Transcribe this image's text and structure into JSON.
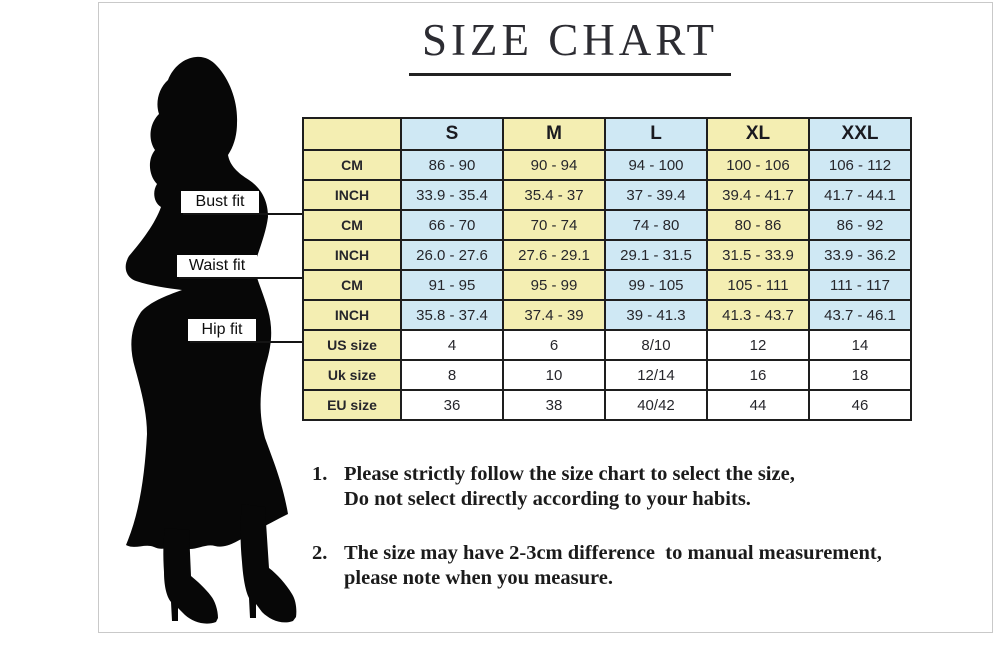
{
  "title": "SIZE CHART",
  "figure_labels": [
    "Bust fit",
    "Waist fit",
    "Hip fit"
  ],
  "chart_data": {
    "type": "table",
    "title": "SIZE CHART",
    "columns": [
      "",
      "S",
      "M",
      "L",
      "XL",
      "XXL"
    ],
    "rows": [
      {
        "group": "Bust fit",
        "label": "CM",
        "values": [
          "86 - 90",
          "90 - 94",
          "94 - 100",
          "100 - 106",
          "106 - 112"
        ]
      },
      {
        "group": "Bust fit",
        "label": "INCH",
        "values": [
          "33.9 - 35.4",
          "35.4 - 37",
          "37 - 39.4",
          "39.4 - 41.7",
          "41.7 - 44.1"
        ]
      },
      {
        "group": "Waist fit",
        "label": "CM",
        "values": [
          "66 - 70",
          "70 - 74",
          "74 - 80",
          "80 - 86",
          "86 - 92"
        ]
      },
      {
        "group": "Waist fit",
        "label": "INCH",
        "values": [
          "26.0 - 27.6",
          "27.6 - 29.1",
          "29.1 - 31.5",
          "31.5 - 33.9",
          "33.9 - 36.2"
        ]
      },
      {
        "group": "Hip fit",
        "label": "CM",
        "values": [
          "91 - 95",
          "95 - 99",
          "99 - 105",
          "105 - 111",
          "111 - 117"
        ]
      },
      {
        "group": "Hip fit",
        "label": "INCH",
        "values": [
          "35.8 - 37.4",
          "37.4 - 39",
          "39 - 41.3",
          "41.3 - 43.7",
          "43.7 - 46.1"
        ]
      },
      {
        "group": "sizes",
        "label": "US size",
        "values": [
          "4",
          "6",
          "8/10",
          "12",
          "14"
        ]
      },
      {
        "group": "sizes",
        "label": "Uk size",
        "values": [
          "8",
          "10",
          "12/14",
          "16",
          "18"
        ]
      },
      {
        "group": "sizes",
        "label": "EU size",
        "values": [
          "36",
          "38",
          "40/42",
          "44",
          "46"
        ]
      }
    ],
    "legend_position": "none",
    "grid": true
  },
  "notes": [
    {
      "number": "1.",
      "lines": [
        "Please strictly follow the size chart to select the size,",
        "Do not select directly according to your habits."
      ]
    },
    {
      "number": "2.",
      "lines": [
        "The size may have 2-3cm difference  to manual measurement,",
        "please note when you measure."
      ]
    }
  ],
  "colors": {
    "cell_yellow": "#f4eeb2",
    "cell_blue": "#cfe8f4",
    "cell_white": "#ffffff",
    "table_border": "#1e1e1e",
    "title_color": "#2c2c32",
    "silhouette": "#070707",
    "frame_border": "#c9c9c9"
  }
}
